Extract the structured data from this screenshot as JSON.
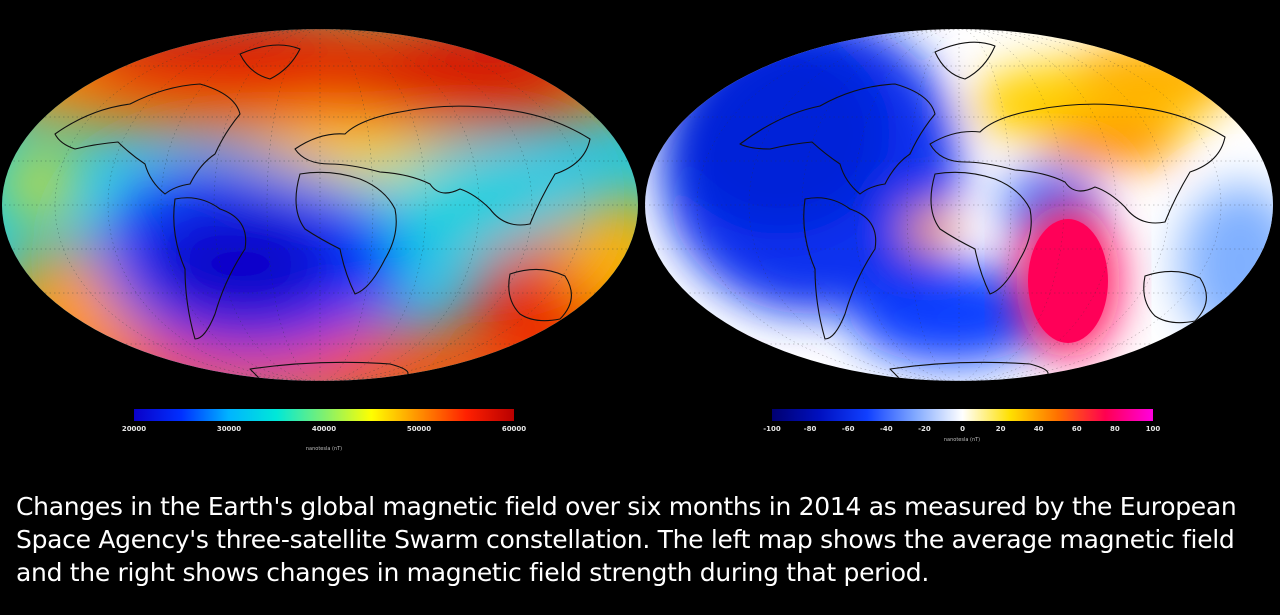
{
  "left_map": {
    "colorbar": {
      "ticks": [
        "20000",
        "30000",
        "40000",
        "50000",
        "60000"
      ],
      "unit": "nanotesla (nT)",
      "colors": [
        "#0a00c8",
        "#0030ff",
        "#00b4ff",
        "#00e8d8",
        "#7ff070",
        "#ffff00",
        "#ff9000",
        "#ff2000",
        "#b80000"
      ]
    }
  },
  "right_map": {
    "colorbar": {
      "ticks": [
        "-100",
        "-80",
        "-60",
        "-40",
        "-20",
        "0",
        "20",
        "40",
        "60",
        "80",
        "100"
      ],
      "unit": "nanotesla (nT)",
      "colors": [
        "#000070",
        "#0010c0",
        "#1040ff",
        "#80a8ff",
        "#ffffff",
        "#ffe000",
        "#ff7000",
        "#ff0050",
        "#ff00e0"
      ]
    }
  },
  "caption": "Changes in the Earth's global magnetic field over six months in 2014 as measured by the European Space Agency's three-satellite Swarm constellation. The left map shows the average magnetic field and the right shows changes in magnetic field strength during that period."
}
